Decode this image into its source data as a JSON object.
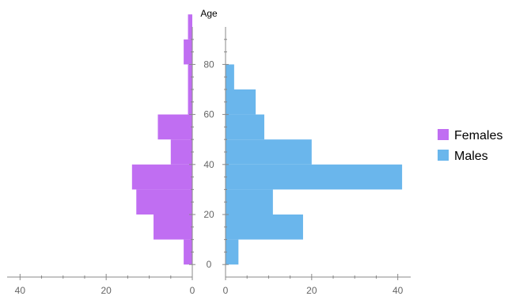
{
  "chart_data": {
    "type": "bar",
    "orientation": "horizontal",
    "layout": "population-pyramid",
    "y_axis_title": "Age",
    "bin_width": 10,
    "age_bins": [
      0,
      10,
      20,
      30,
      40,
      50,
      60,
      70,
      80,
      90
    ],
    "age_ticks": [
      0,
      20,
      40,
      60,
      80
    ],
    "age_range": [
      -5,
      95
    ],
    "females_x_ticks": [
      40,
      20,
      0
    ],
    "males_x_ticks": [
      0,
      20,
      40
    ],
    "females_x_range": [
      0,
      43
    ],
    "males_x_range": [
      0,
      43
    ],
    "legend": {
      "placement": "right"
    },
    "series": [
      {
        "name": "Females",
        "color": "#c06ef2",
        "values": [
          2,
          9,
          13,
          14,
          5,
          8,
          1,
          1,
          2,
          1
        ]
      },
      {
        "name": "Males",
        "color": "#6ab6ec",
        "values": [
          3,
          18,
          11,
          41,
          20,
          9,
          7,
          2,
          0,
          0
        ]
      }
    ]
  }
}
